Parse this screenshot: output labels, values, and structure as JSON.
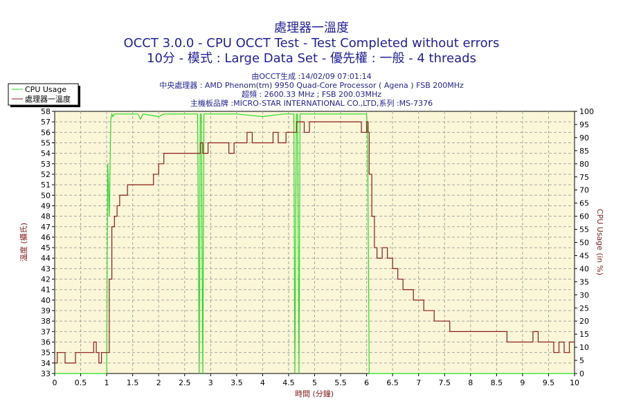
{
  "titles": {
    "line1": "處理器一溫度",
    "line2": "OCCT 3.0.0 - CPU OCCT Test - Test Completed without errors",
    "line3": "10分 - 模式 : Large Data Set - 優先權 : 一般 - 4 threads"
  },
  "info": {
    "line1": "由OCCT生成 :14/02/09 07:01:14",
    "line2": "中央處理器 : AMD Phenom(tm) 9950 Quad-Core Processor ( Agena ) FSB 200MHz",
    "line3": "超頻 : 2600.33 MHz ; FSB 200.03MHz",
    "line4": "主機板品牌 :MICRO-STAR INTERNATIONAL CO.,LTD,系列 :MS-7376"
  },
  "legend": {
    "cpu_usage": "CPU Usage",
    "temperature": "處理器一溫度"
  },
  "colors": {
    "cpu": "#22dd22",
    "temp": "#8b1a1a",
    "plot_bg": "#fbf6d7",
    "grid": "#a6a6a6"
  },
  "chart_data": {
    "type": "line",
    "xlabel": "時間 (分鐘)",
    "ylabel_left": "溫度 (攝氏)",
    "ylabel_right": "CPU Usage (in %)",
    "xlim": [
      0,
      10
    ],
    "ylim_left": [
      33,
      58
    ],
    "ylim_right": [
      0,
      100
    ],
    "x_ticks": [
      "0",
      "0.5",
      "1",
      "1.5",
      "2",
      "2.5",
      "3",
      "3.5",
      "4",
      "4.5",
      "5",
      "5.5",
      "6",
      "6.5",
      "7",
      "7.5",
      "8",
      "8.5",
      "9",
      "9.5",
      "10"
    ],
    "y_ticks_left": [
      "33",
      "34",
      "35",
      "36",
      "37",
      "38",
      "39",
      "40",
      "41",
      "42",
      "43",
      "44",
      "45",
      "46",
      "47",
      "48",
      "49",
      "50",
      "51",
      "52",
      "53",
      "54",
      "55",
      "56",
      "57",
      "58"
    ],
    "y_ticks_right": [
      "0",
      "5",
      "10",
      "15",
      "20",
      "25",
      "30",
      "35",
      "40",
      "45",
      "50",
      "55",
      "60",
      "65",
      "70",
      "75",
      "80",
      "85",
      "90",
      "95",
      "100"
    ],
    "grid": true,
    "legend_position": "top-left",
    "series": [
      {
        "name": "CPU Usage",
        "axis": "right",
        "x": [
          0,
          1.0,
          1.02,
          1.05,
          1.08,
          1.1,
          1.12,
          1.15,
          1.6,
          1.65,
          1.7,
          2.0,
          2.1,
          2.5,
          2.75,
          2.78,
          2.8,
          2.82,
          2.85,
          2.87,
          2.9,
          3.5,
          4.0,
          4.4,
          4.6,
          4.62,
          4.65,
          4.67,
          4.7,
          4.72,
          4.75,
          5.0,
          5.5,
          5.9,
          6.0,
          6.02,
          6.05,
          10
        ],
        "y": [
          0,
          0,
          80,
          60,
          97,
          99,
          98,
          99,
          99,
          97,
          99,
          98,
          99,
          99,
          99,
          0,
          99,
          99,
          0,
          99,
          99,
          99,
          98,
          99,
          99,
          0,
          99,
          99,
          0,
          99,
          99,
          99,
          99,
          99,
          99,
          90,
          0,
          0
        ]
      },
      {
        "name": "處理器一溫度",
        "axis": "left",
        "x": [
          0,
          0.05,
          0.2,
          0.4,
          0.7,
          0.75,
          0.8,
          0.85,
          0.9,
          1.0,
          1.05,
          1.1,
          1.15,
          1.2,
          1.25,
          1.3,
          1.4,
          1.5,
          1.6,
          1.9,
          2.0,
          2.1,
          2.4,
          2.8,
          2.85,
          2.95,
          3.3,
          3.35,
          3.45,
          3.7,
          3.8,
          4.2,
          4.3,
          4.45,
          4.6,
          4.65,
          4.8,
          4.9,
          5.6,
          5.9,
          6.0,
          6.03,
          6.05,
          6.1,
          6.15,
          6.2,
          6.3,
          6.4,
          6.5,
          6.6,
          6.7,
          6.8,
          6.9,
          7.0,
          7.1,
          7.2,
          7.3,
          7.4,
          7.5,
          7.6,
          7.8,
          8.0,
          8.4,
          8.7,
          9.0,
          9.2,
          9.3,
          9.5,
          9.6,
          9.7,
          9.8,
          9.9,
          10
        ],
        "y": [
          34,
          35,
          34,
          35,
          35,
          36,
          35,
          34,
          35,
          35,
          42,
          47,
          48,
          49,
          50,
          50,
          51,
          51,
          51,
          52,
          53,
          54,
          54,
          55,
          54,
          55,
          55,
          54,
          55,
          56,
          55,
          56,
          55,
          56,
          56,
          57,
          56,
          57,
          57,
          56,
          57,
          56,
          52,
          48,
          45,
          44,
          45,
          44,
          43,
          42,
          41,
          41,
          40,
          40,
          39,
          39,
          38,
          38,
          38,
          37,
          37,
          37,
          37,
          36,
          36,
          37,
          36,
          36,
          35,
          36,
          35,
          36,
          36
        ]
      }
    ]
  }
}
